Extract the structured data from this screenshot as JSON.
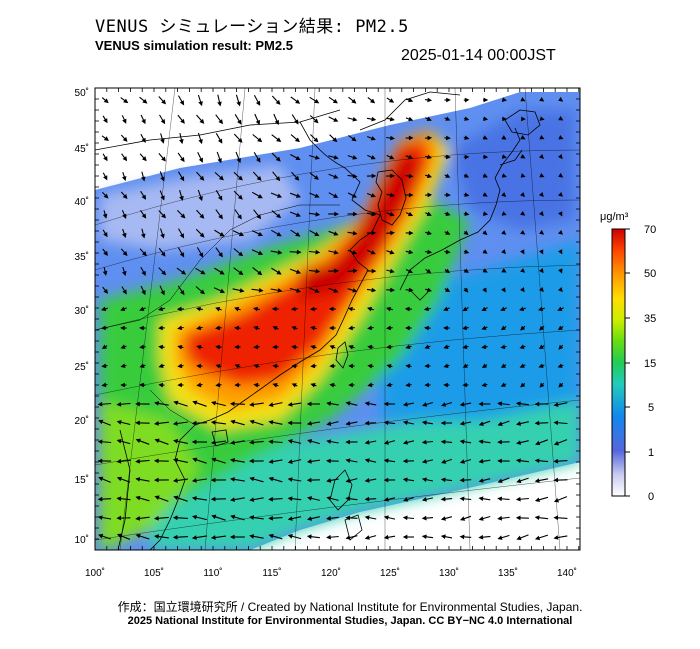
{
  "header": {
    "title_jp": "VENUS シミュレーション結果: PM2.5",
    "title_en": "VENUS simulation result: PM2.5",
    "timestamp": "2025-01-14 00:00JST"
  },
  "map": {
    "lon_ticks": [
      "100˚",
      "105˚",
      "110˚",
      "115˚",
      "120˚",
      "125˚",
      "130˚",
      "135˚",
      "140˚"
    ],
    "lat_ticks": [
      "50˚",
      "45˚",
      "40˚",
      "35˚",
      "30˚",
      "25˚",
      "20˚",
      "15˚",
      "10˚"
    ],
    "lon_range": [
      100,
      141
    ],
    "lat_range": [
      9,
      51
    ]
  },
  "colorbar": {
    "unit": "μg/m³",
    "labels": [
      "70",
      "50",
      "35",
      "15",
      "5",
      "1",
      "0"
    ],
    "colors": [
      "#cc0000",
      "#ff4400",
      "#ffaa00",
      "#ffff00",
      "#88dd00",
      "#22cc44",
      "#22ccaa",
      "#2299ee",
      "#3366dd",
      "#8899ee",
      "#ffffff"
    ]
  },
  "footer": {
    "credit_line": "作成：国立環境研究所 / Created by National Institute for Environmental Studies, Japan.",
    "copyright_line": "2025 National Institute for Environmental Studies, Japan. CC BY−NC 4.0 International"
  }
}
